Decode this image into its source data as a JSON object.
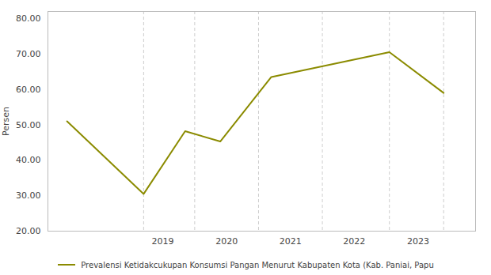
{
  "chart_data": {
    "type": "line",
    "ylabel": "Persen",
    "x": [
      2017.5,
      2018.7,
      2019.35,
      2019.9,
      2020.7,
      2022.55,
      2023.4
    ],
    "series": [
      {
        "name": "Prevalensi Ketidakcukupan Konsumsi Pangan Menurut Kabupaten Kota (Kab. Paniai, Papu",
        "color": "#8B8B00",
        "values": [
          51.0,
          30.5,
          48.2,
          45.3,
          63.5,
          70.5,
          59.0
        ]
      }
    ],
    "xlim": [
      2017.2,
      2023.9
    ],
    "xticks": [
      2019,
      2020,
      2021,
      2022,
      2023
    ],
    "ylim": [
      20,
      82
    ],
    "yticks": [
      {
        "value": 20.0,
        "label": "20.00"
      },
      {
        "value": 30.0,
        "label": "30.00"
      },
      {
        "value": 40.0,
        "label": "40.00"
      },
      {
        "value": 50.0,
        "label": "50.00"
      },
      {
        "value": 60.0,
        "label": "60.00"
      },
      {
        "value": 70.0,
        "label": "70.00"
      },
      {
        "value": 80.0,
        "label": "80.00"
      }
    ],
    "vlines": [
      2018.7,
      2019.5,
      2020.5,
      2021.5,
      2022.55,
      2023.4
    ],
    "legend": "bottom"
  }
}
